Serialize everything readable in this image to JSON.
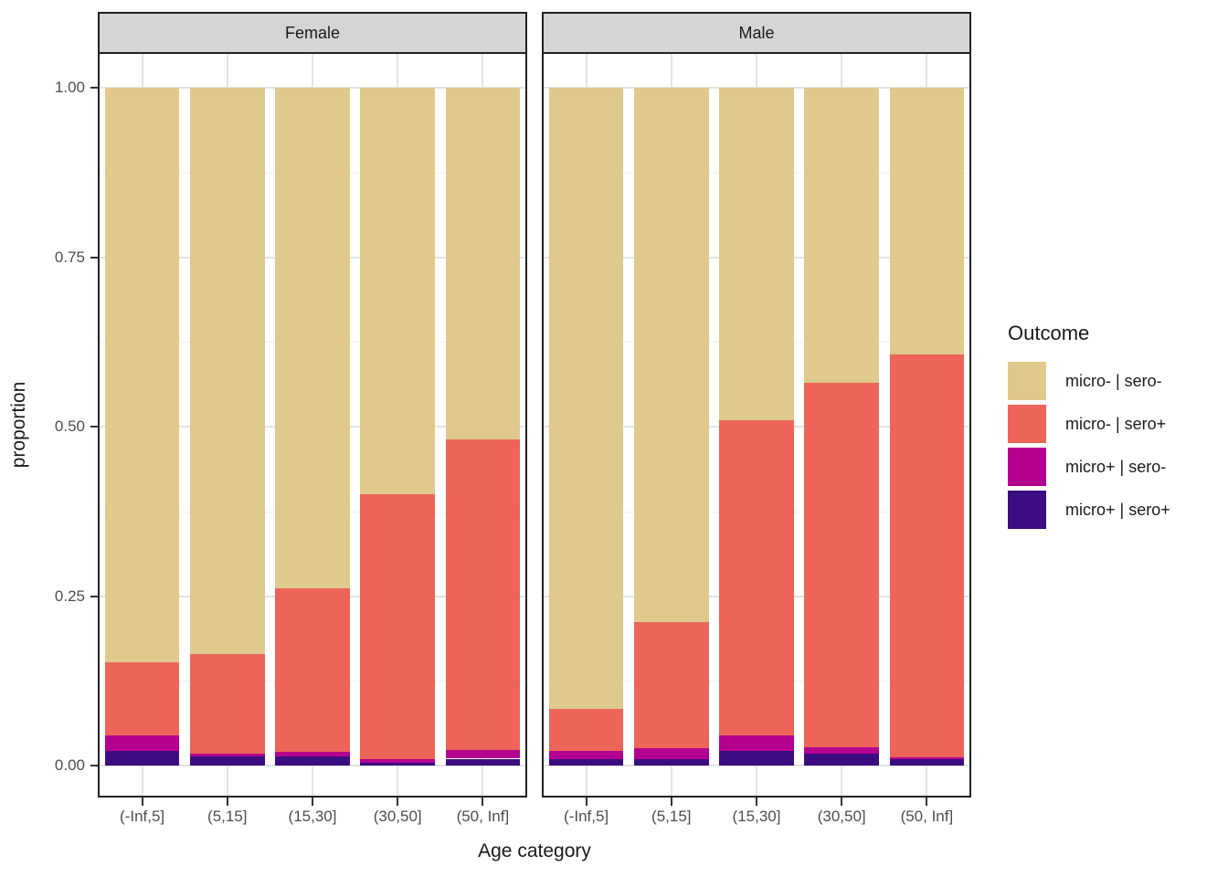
{
  "facet_strips": {
    "female": "Female",
    "male": "Male"
  },
  "axes": {
    "x_title": "Age category",
    "y_title": "proportion",
    "y_tick_labels": [
      "1.00",
      "0.75",
      "0.50",
      "0.25",
      "0.00"
    ],
    "y_tick_values": [
      1.0,
      0.75,
      0.5,
      0.25,
      0.0
    ],
    "y_minor_values": [
      0.875,
      0.625,
      0.375,
      0.125
    ]
  },
  "legend": {
    "title": "Outcome",
    "items": [
      {
        "label": "micro- | sero-",
        "color": "#e0c98c"
      },
      {
        "label": "micro- | sero+",
        "color": "#ec6558"
      },
      {
        "label": "micro+ | sero-",
        "color": "#b4008f"
      },
      {
        "label": "micro+ | sero+",
        "color": "#3b0d80"
      }
    ]
  },
  "chart_data": {
    "type": "bar",
    "stacked": true,
    "title": "",
    "xlabel": "Age category",
    "ylabel": "proportion",
    "ylim": [
      0,
      1
    ],
    "grid": true,
    "legend_position": "right",
    "categories": [
      "(-Inf,5]",
      "(5,15]",
      "(15,30]",
      "(30,50]",
      "(50, Inf]"
    ],
    "facets": [
      {
        "name": "Female",
        "series": [
          {
            "name": "micro- | sero-",
            "color": "#e0c98c",
            "values": [
              0.847,
              0.835,
              0.739,
              0.599,
              0.519
            ]
          },
          {
            "name": "micro- | sero+",
            "color": "#ec6558",
            "values": [
              0.108,
              0.147,
              0.241,
              0.391,
              0.458
            ]
          },
          {
            "name": "micro+ | sero-",
            "color": "#b4008f",
            "values": [
              0.024,
              0.005,
              0.006,
              0.006,
              0.013
            ]
          },
          {
            "name": "micro+ | sero+",
            "color": "#3b0d80",
            "values": [
              0.021,
              0.013,
              0.014,
              0.004,
              0.01
            ]
          }
        ]
      },
      {
        "name": "Male",
        "series": [
          {
            "name": "micro- | sero-",
            "color": "#e0c98c",
            "values": [
              0.916,
              0.789,
              0.491,
              0.435,
              0.393
            ]
          },
          {
            "name": "micro- | sero+",
            "color": "#ec6558",
            "values": [
              0.062,
              0.185,
              0.464,
              0.538,
              0.595
            ]
          },
          {
            "name": "micro+ | sero-",
            "color": "#b4008f",
            "values": [
              0.012,
              0.016,
              0.024,
              0.009,
              0.002
            ]
          },
          {
            "name": "micro+ | sero+",
            "color": "#3b0d80",
            "values": [
              0.01,
              0.01,
              0.021,
              0.018,
              0.01
            ]
          }
        ]
      }
    ]
  }
}
